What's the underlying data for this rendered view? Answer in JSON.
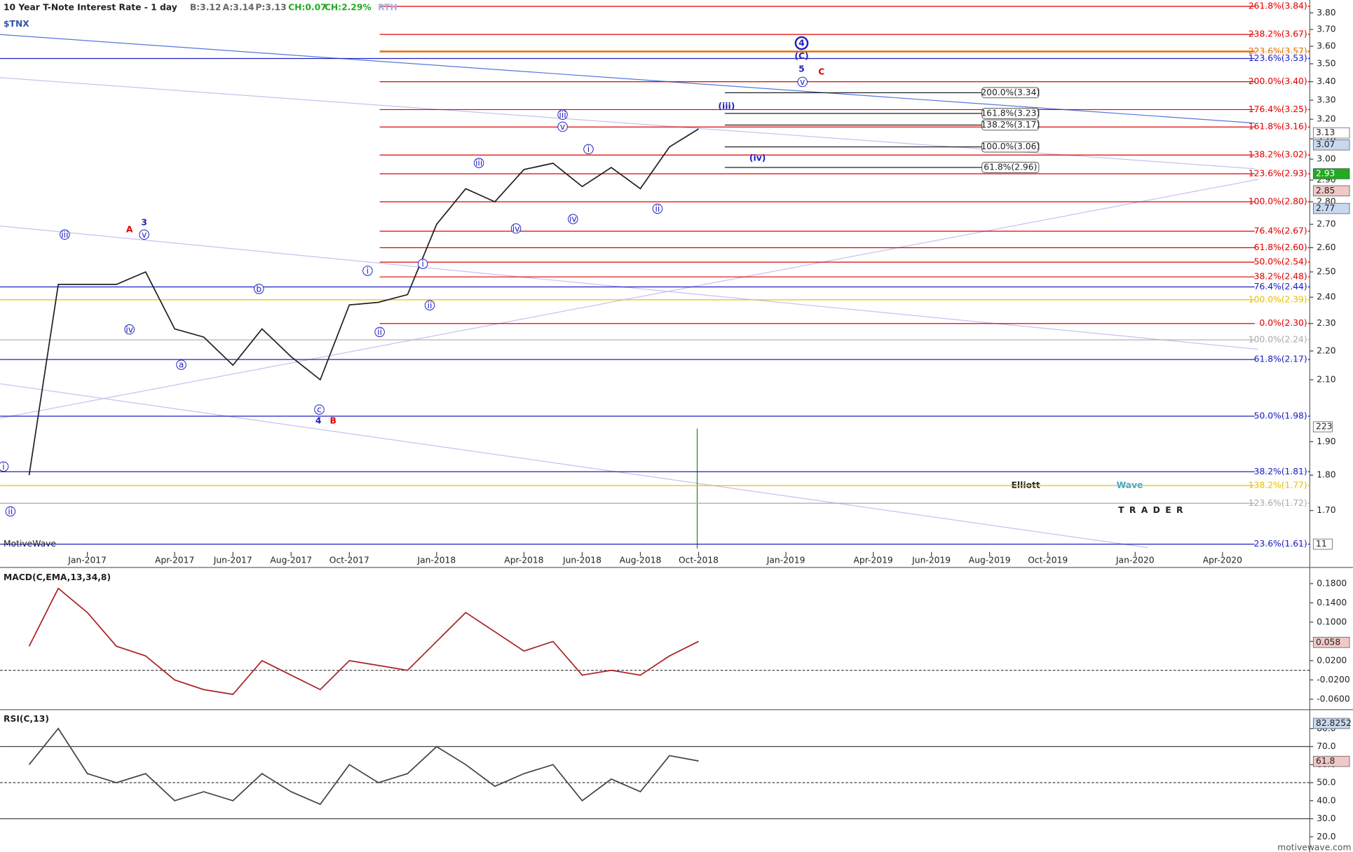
{
  "chart_data": [
    {
      "type": "line",
      "title": "$TNX",
      "subtitle": "10 Year T-Note Interest Rate - 1 day",
      "quote": [
        "B:3.12",
        "A:3.14",
        "P:3.13",
        "CH:0.07",
        "CH:2.29%",
        "RTH"
      ],
      "source": "MotiveWave",
      "log_scale": true,
      "color": "#222222",
      "xlim": [
        "2016-10",
        "2020-07"
      ],
      "xticks": [
        {
          "value": "2017-01",
          "label": "Jan-2017"
        },
        {
          "value": "2017-04",
          "label": "Apr-2017"
        },
        {
          "value": "2017-06",
          "label": "Jun-2017"
        },
        {
          "value": "2017-08",
          "label": "Aug-2017"
        },
        {
          "value": "2017-10",
          "label": "Oct-2017"
        },
        {
          "value": "2018-01",
          "label": "Jan-2018"
        },
        {
          "value": "2018-04",
          "label": "Apr-2018"
        },
        {
          "value": "2018-06",
          "label": "Jun-2018"
        },
        {
          "value": "2018-08",
          "label": "Aug-2018"
        },
        {
          "value": "2018-10",
          "label": "Oct-2018"
        },
        {
          "value": "2019-01",
          "label": "Jan-2019"
        },
        {
          "value": "2019-04",
          "label": "Apr-2019"
        },
        {
          "value": "2019-06",
          "label": "Jun-2019"
        },
        {
          "value": "2019-08",
          "label": "Aug-2019"
        },
        {
          "value": "2019-10",
          "label": "Oct-2019"
        },
        {
          "value": "2020-01",
          "label": "Jan-2020"
        },
        {
          "value": "2020-04",
          "label": "Apr-2020"
        }
      ],
      "ylim": [
        1.59,
        3.88
      ],
      "yticks": [
        {
          "value": 1.7,
          "label": "1.70"
        },
        {
          "value": 1.8,
          "label": "1.80"
        },
        {
          "value": 1.9,
          "label": "1.90"
        },
        {
          "value": 2.1,
          "label": "2.10"
        },
        {
          "value": 2.2,
          "label": "2.20"
        },
        {
          "value": 2.3,
          "label": "2.30"
        },
        {
          "value": 2.4,
          "label": "2.40"
        },
        {
          "value": 2.5,
          "label": "2.50"
        },
        {
          "value": 2.6,
          "label": "2.60"
        },
        {
          "value": 2.7,
          "label": "2.70"
        },
        {
          "value": 2.8,
          "label": "2.80"
        },
        {
          "value": 2.9,
          "label": "2.90"
        },
        {
          "value": 3.0,
          "label": "3.00"
        },
        {
          "value": 3.1,
          "label": "3.10"
        },
        {
          "value": 3.2,
          "label": "3.20"
        },
        {
          "value": 3.3,
          "label": "3.30"
        },
        {
          "value": 3.4,
          "label": "3.40"
        },
        {
          "value": 3.5,
          "label": "3.50"
        },
        {
          "value": 3.6,
          "label": "3.60"
        },
        {
          "value": 3.7,
          "label": "3.70"
        },
        {
          "value": 3.8,
          "label": "3.80"
        }
      ],
      "series": [
        {
          "color": "#222222",
          "x": [
            "2016-11",
            "2016-12",
            "2017-01",
            "2017-02",
            "2017-03",
            "2017-04",
            "2017-05",
            "2017-06",
            "2017-07",
            "2017-08",
            "2017-09",
            "2017-10",
            "2017-11",
            "2017-12",
            "2018-01",
            "2018-02",
            "2018-03",
            "2018-04",
            "2018-05",
            "2018-06",
            "2018-07",
            "2018-08",
            "2018-09",
            "2018-10"
          ],
          "values": [
            1.8,
            2.45,
            2.45,
            2.45,
            2.5,
            2.28,
            2.25,
            2.15,
            2.28,
            2.18,
            2.1,
            2.37,
            2.38,
            2.41,
            2.7,
            2.86,
            2.8,
            2.95,
            2.98,
            2.87,
            2.96,
            2.86,
            3.06,
            3.15
          ]
        }
      ],
      "levels": [
        {
          "label": "261.8%(3.84)",
          "value": 3.84,
          "color": "#e00000"
        },
        {
          "label": "238.2%(3.67)",
          "value": 3.67,
          "color": "#e00000"
        },
        {
          "label": "223.6%(3.57)",
          "value": 3.57,
          "color": "#e07000"
        },
        {
          "label": "123.6%(3.53)",
          "value": 3.53,
          "color": "#2020c0"
        },
        {
          "label": "200.0%(3.40)",
          "value": 3.4,
          "color": "#e00000"
        },
        {
          "label": "176.4%(3.25)",
          "value": 3.25,
          "color": "#e00000"
        },
        {
          "label": "161.8%(3.16)",
          "value": 3.16,
          "color": "#e00000"
        },
        {
          "label": "138.2%(3.02)",
          "value": 3.02,
          "color": "#e00000"
        },
        {
          "label": "123.6%(2.93)",
          "value": 2.93,
          "color": "#e00000"
        },
        {
          "label": "100.0%(2.80)",
          "value": 2.8,
          "color": "#e00000"
        },
        {
          "label": "76.4%(2.67)",
          "value": 2.67,
          "color": "#e00000"
        },
        {
          "label": "61.8%(2.60)",
          "value": 2.6,
          "color": "#e00000"
        },
        {
          "label": "50.0%(2.54)",
          "value": 2.54,
          "color": "#e00000"
        },
        {
          "label": "38.2%(2.48)",
          "value": 2.48,
          "color": "#e00000"
        },
        {
          "label": "76.4%(2.44)",
          "value": 2.44,
          "color": "#2020c0"
        },
        {
          "label": "100.0%(2.39)",
          "value": 2.39,
          "color": "#e8c000"
        },
        {
          "label": "0.0%(2.30)",
          "value": 2.3,
          "color": "#e00000"
        },
        {
          "label": "100.0%(2.24)",
          "value": 2.24,
          "color": "#aaaaaa"
        },
        {
          "label": "61.8%(2.17)",
          "value": 2.17,
          "color": "#2020c0"
        },
        {
          "label": "50.0%(1.98)",
          "value": 1.98,
          "color": "#2020c0"
        },
        {
          "label": "38.2%(1.81)",
          "value": 1.81,
          "color": "#2020c0"
        },
        {
          "label": "138.2%(1.77)",
          "value": 1.77,
          "color": "#e8c000"
        },
        {
          "label": "123.6%(1.72)",
          "value": 1.72,
          "color": "#aaaaaa"
        },
        {
          "label": "23.6%(1.61)",
          "value": 1.61,
          "color": "#2020c0"
        }
      ],
      "projections": [
        {
          "label": "200.0%(3.34)",
          "value": 3.34
        },
        {
          "label": "161.8%(3.23)",
          "value": 3.23
        },
        {
          "label": "138.2%(3.17)",
          "value": 3.17
        },
        {
          "label": "100.0%(3.06)",
          "value": 3.06
        },
        {
          "label": "61.8%(2.96)",
          "value": 2.96
        }
      ],
      "badges": [
        {
          "value": 3.13,
          "color": "#ffffff"
        },
        {
          "value": 3.07,
          "color": "#c8d8f0"
        },
        {
          "value": 2.93,
          "color": "#22aa22"
        },
        {
          "value": 2.85,
          "color": "#f0c8c8"
        },
        {
          "value": 2.77,
          "color": "#c8d8f0"
        }
      ],
      "volume_badges": [
        223,
        11
      ],
      "annotations": [
        {
          "text": "i",
          "color": "#2020c0",
          "circled": true
        },
        {
          "text": "ii",
          "color": "#2020c0",
          "circled": true
        },
        {
          "text": "iii",
          "color": "#2020c0",
          "circled": true
        },
        {
          "text": "A",
          "color": "#dd0000",
          "circled": false
        },
        {
          "text": "3",
          "color": "#2020c0",
          "circled": false
        },
        {
          "text": "v",
          "color": "#2020c0",
          "circled": true
        },
        {
          "text": "iv",
          "color": "#2020c0",
          "circled": true
        },
        {
          "text": "b",
          "color": "#2020c0",
          "circled": true
        },
        {
          "text": "a",
          "color": "#2020c0",
          "circled": true
        },
        {
          "text": "c",
          "color": "#2020c0",
          "circled": true
        },
        {
          "text": "4",
          "color": "#2020c0",
          "circled": false
        },
        {
          "text": "B",
          "color": "#dd0000",
          "circled": false
        },
        {
          "text": "i",
          "color": "#2020c0",
          "circled": true
        },
        {
          "text": "ii",
          "color": "#2020c0",
          "circled": true
        },
        {
          "text": "i",
          "color": "#2020c0",
          "circled": true
        },
        {
          "text": "ii",
          "color": "#2020c0",
          "circled": true
        },
        {
          "text": "iii",
          "color": "#2020c0",
          "circled": true
        },
        {
          "text": "iv",
          "color": "#2020c0",
          "circled": true
        },
        {
          "text": "iii",
          "color": "#2020c0",
          "circled": true
        },
        {
          "text": "v",
          "color": "#2020c0",
          "circled": true
        },
        {
          "text": "i",
          "color": "#2020c0",
          "circled": true
        },
        {
          "text": "iv",
          "color": "#2020c0",
          "circled": true
        },
        {
          "text": "ii",
          "color": "#2020c0",
          "circled": true
        },
        {
          "text": "(iii)",
          "color": "#2020c0",
          "circled": false
        },
        {
          "text": "(iv)",
          "color": "#2020c0",
          "circled": false
        },
        {
          "text": "4",
          "color": "#2020c0",
          "circled": true
        },
        {
          "text": "(C)",
          "color": "#2020c0",
          "circled": false
        },
        {
          "text": "5",
          "color": "#2020c0",
          "circled": false
        },
        {
          "text": "C",
          "color": "#dd0000",
          "circled": false
        },
        {
          "text": "v",
          "color": "#2020c0",
          "circled": true
        }
      ]
    },
    {
      "type": "line",
      "title": "MACD(C,EMA,13,34,8)",
      "color": "#aa2222",
      "ylim": [
        -0.08,
        0.21
      ],
      "yticks": [
        {
          "value": -0.06,
          "label": "-0.0600"
        },
        {
          "value": -0.02,
          "label": "-0.0200"
        },
        {
          "value": 0.02,
          "label": "0.0200"
        },
        {
          "value": 0.06,
          "label": "0.0600"
        },
        {
          "value": 0.1,
          "label": "0.1000"
        },
        {
          "value": 0.14,
          "label": "0.1400"
        },
        {
          "value": 0.18,
          "label": "0.1800"
        }
      ],
      "series": [
        {
          "color": "#aa2222",
          "x": [
            "2016-11",
            "2016-12",
            "2017-01",
            "2017-02",
            "2017-03",
            "2017-04",
            "2017-05",
            "2017-06",
            "2017-07",
            "2017-08",
            "2017-09",
            "2017-10",
            "2017-11",
            "2017-12",
            "2018-01",
            "2018-02",
            "2018-03",
            "2018-04",
            "2018-05",
            "2018-06",
            "2018-07",
            "2018-08",
            "2018-09",
            "2018-10"
          ],
          "values": [
            0.05,
            0.17,
            0.12,
            0.05,
            0.03,
            -0.02,
            -0.04,
            -0.05,
            0.02,
            -0.01,
            -0.04,
            0.02,
            0.01,
            0.0,
            0.06,
            0.12,
            0.08,
            0.04,
            0.06,
            -0.01,
            0.0,
            -0.01,
            0.03,
            0.06
          ]
        }
      ],
      "badges": [
        {
          "value": 0.058,
          "color": "#f0c8c8"
        }
      ]
    },
    {
      "type": "line",
      "title": "RSI(C,13)",
      "color": "#444444",
      "ylim": [
        13,
        89
      ],
      "yticks": [
        {
          "value": 20,
          "label": "20.0"
        },
        {
          "value": 30,
          "label": "30.0"
        },
        {
          "value": 40,
          "label": "40.0"
        },
        {
          "value": 50,
          "label": "50.0"
        },
        {
          "value": 60,
          "label": "60.0"
        },
        {
          "value": 70,
          "label": "70.0"
        },
        {
          "value": 80,
          "label": "80.0"
        }
      ],
      "series": [
        {
          "color": "#444444",
          "x": [
            "2016-11",
            "2016-12",
            "2017-01",
            "2017-02",
            "2017-03",
            "2017-04",
            "2017-05",
            "2017-06",
            "2017-07",
            "2017-08",
            "2017-09",
            "2017-10",
            "2017-11",
            "2017-12",
            "2018-01",
            "2018-02",
            "2018-03",
            "2018-04",
            "2018-05",
            "2018-06",
            "2018-07",
            "2018-08",
            "2018-09",
            "2018-10"
          ],
          "values": [
            60,
            80,
            55,
            50,
            55,
            40,
            45,
            40,
            55,
            45,
            38,
            60,
            50,
            55,
            70,
            60,
            48,
            55,
            60,
            40,
            52,
            45,
            65,
            62
          ]
        }
      ],
      "badges": [
        {
          "value": 82.8252,
          "color": "#c8d8f0"
        },
        {
          "value": 61.8,
          "color": "#f0c8c8"
        }
      ]
    }
  ],
  "logo": {
    "word1": "Elliott",
    "word2": "Wave",
    "word3": "TRADER"
  },
  "watermark": "motivewave.com"
}
